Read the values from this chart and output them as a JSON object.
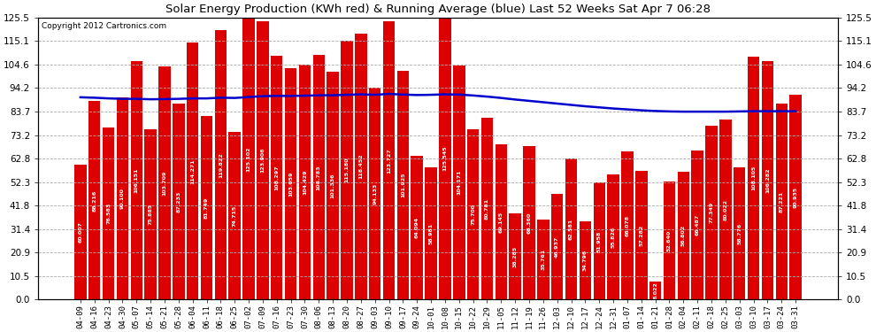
{
  "title": "Solar Energy Production (KWh red) & Running Average (blue) Last 52 Weeks Sat Apr 7 06:28",
  "copyright": "Copyright 2012 Cartronics.com",
  "bar_color": "#dd0000",
  "line_color": "#0000cc",
  "background_color": "#ffffff",
  "grid_color": "#aaaaaa",
  "ylim": [
    0,
    125.5
  ],
  "yticks": [
    0.0,
    10.5,
    20.9,
    31.4,
    41.8,
    52.3,
    62.8,
    73.2,
    83.7,
    94.2,
    104.6,
    115.1,
    125.5
  ],
  "categories": [
    "04-09",
    "04-16",
    "04-23",
    "04-30",
    "05-07",
    "05-14",
    "05-21",
    "05-28",
    "06-04",
    "06-11",
    "06-18",
    "06-25",
    "07-02",
    "07-09",
    "07-16",
    "07-23",
    "07-30",
    "08-06",
    "08-13",
    "08-20",
    "08-27",
    "09-03",
    "09-10",
    "09-17",
    "09-24",
    "10-01",
    "10-08",
    "10-15",
    "10-22",
    "10-29",
    "11-05",
    "11-12",
    "11-19",
    "11-26",
    "12-03",
    "12-10",
    "12-17",
    "12-24",
    "12-31",
    "01-07",
    "01-14",
    "01-21",
    "01-28",
    "02-04",
    "02-11",
    "02-18",
    "02-25",
    "03-03",
    "03-10",
    "03-17",
    "03-24",
    "03-31"
  ],
  "bar_values": [
    60.007,
    88.216,
    76.583,
    90.1,
    106.151,
    75.885,
    103.709,
    87.233,
    114.271,
    81.749,
    119.822,
    74.715,
    125.102,
    123.906,
    108.297,
    103.059,
    104.429,
    108.783,
    101.336,
    115.18,
    118.452,
    94.133,
    123.727,
    101.925,
    64.094,
    58.981,
    125.545,
    104.171,
    75.7,
    80.781,
    69.145,
    38.285,
    68.36,
    35.761,
    46.937,
    62.581,
    34.796,
    51.958,
    55.826,
    66.078,
    57.282,
    8.022,
    52.64,
    56.802,
    66.487,
    77.349,
    80.022,
    58.776,
    108.105,
    106.282,
    87.221,
    90.935
  ],
  "running_avg": [
    90.0,
    89.8,
    89.5,
    89.3,
    89.3,
    89.1,
    89.2,
    89.3,
    89.5,
    89.5,
    89.8,
    89.7,
    90.1,
    90.5,
    90.6,
    90.6,
    90.7,
    90.9,
    90.9,
    91.1,
    91.3,
    91.1,
    91.5,
    91.2,
    91.0,
    91.1,
    91.3,
    91.2,
    90.8,
    90.3,
    89.7,
    89.0,
    88.4,
    87.8,
    87.2,
    86.6,
    86.0,
    85.5,
    85.0,
    84.6,
    84.2,
    83.9,
    83.7,
    83.6,
    83.6,
    83.6,
    83.6,
    83.7,
    83.8,
    83.8,
    83.8,
    83.8
  ]
}
